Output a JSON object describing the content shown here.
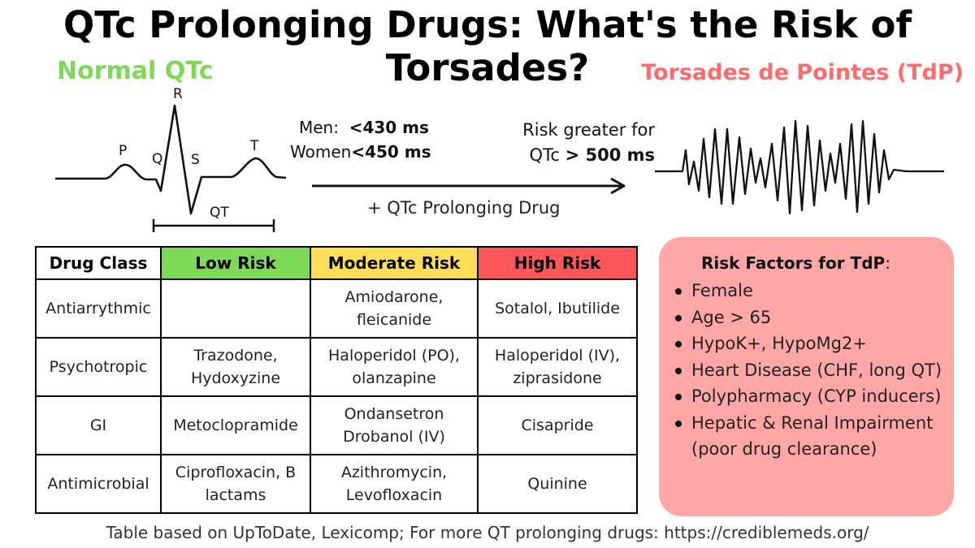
{
  "title": "QTc Prolonging Drugs: What's the Risk of Torsades?",
  "normal_label": "Normal QTc",
  "tdp_label": "Torsades de Pointes (TdP)",
  "ecg_labels": {
    "p": "P",
    "q": "Q",
    "r": "R",
    "s": "S",
    "t": "T",
    "qt": "QT"
  },
  "thresholds": {
    "men_label": "Men:",
    "men_value": "<430 ms",
    "women_label": "Women",
    "women_value": "<450 ms"
  },
  "arrow_caption": "+  QTc Prolonging Drug",
  "risk_greater": {
    "line1": "Risk greater for",
    "line2_prefix": "QTc ",
    "line2_value": "> 500 ms"
  },
  "colors": {
    "low": "#7ed957",
    "moderate": "#ffde59",
    "high": "#ff5757",
    "risk_box": "#ffa7a7",
    "normal_label": "#7ed957",
    "tdp_label": "#ff6b6b"
  },
  "table": {
    "headers": [
      "Drug Class",
      "Low Risk",
      "Moderate Risk",
      "High Risk"
    ],
    "rows": [
      [
        "Antiarrythmic",
        "",
        "Amiodarone, fleicanide",
        "Sotalol, Ibutilide"
      ],
      [
        "Psychotropic",
        "Trazodone, Hydoxyzine",
        "Haloperidol (PO), olanzapine",
        "Haloperidol (IV), ziprasidone"
      ],
      [
        "GI",
        "Metoclopramide",
        "Ondansetron Drobanol (IV)",
        "Cisapride"
      ],
      [
        "Antimicrobial",
        "Ciprofloxacin, B lactams",
        "Azithromycin, Levofloxacin",
        "Quinine"
      ]
    ]
  },
  "risk_factors": {
    "title": "Risk Factors for TdP",
    "colon": ":",
    "items": [
      "Female",
      "Age > 65",
      "HypoK+, HypoMg2+",
      "Heart Disease (CHF, long QT)",
      "Polypharmacy (CYP inducers)",
      "Hepatic & Renal Impairment (poor drug clearance)"
    ]
  },
  "footer": "Table based on UpToDate, Lexicomp; For more QT prolonging drugs: https://crediblemeds.org/"
}
